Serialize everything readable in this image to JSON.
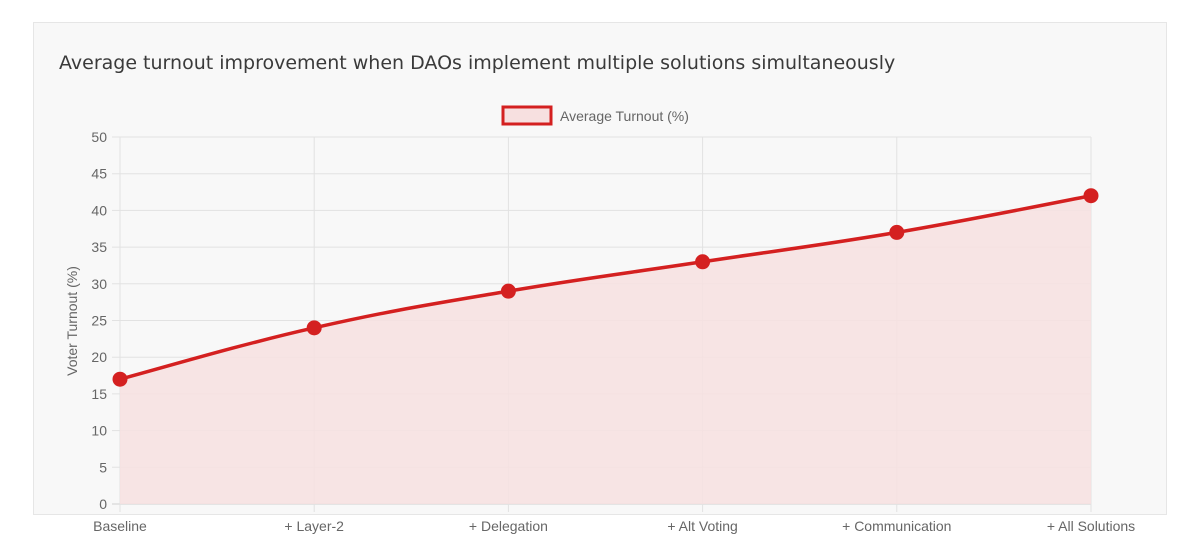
{
  "chart_data": {
    "type": "line",
    "title": "Average turnout improvement when DAOs implement multiple solutions simultaneously",
    "categories": [
      "Baseline",
      "+ Layer-2",
      "+ Delegation",
      "+ Alt Voting",
      "+ Communication",
      "+ All Solutions"
    ],
    "series": [
      {
        "name": "Average Turnout (%)",
        "values": [
          17,
          24,
          29,
          33,
          37,
          42
        ]
      }
    ],
    "xlabel": "",
    "ylabel": "Voter Turnout (%)",
    "ylim": [
      0,
      50
    ],
    "yticks": [
      0,
      5,
      10,
      15,
      20,
      25,
      30,
      35,
      40,
      45,
      50
    ],
    "grid": true,
    "fill": true,
    "legend": "top",
    "colors": {
      "line": "#d42020",
      "fill": "#f7e0e0"
    }
  }
}
